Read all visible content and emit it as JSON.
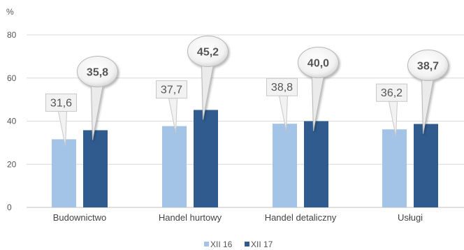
{
  "chart_data": {
    "type": "bar",
    "ylabel": "%",
    "ylim": [
      0,
      80
    ],
    "yticks": [
      0,
      20,
      40,
      60,
      80
    ],
    "yticks_labels": [
      "0",
      "20",
      "40",
      "60",
      "80"
    ],
    "grid": true,
    "legend_position": "bottom",
    "categories": [
      "Budownictwo",
      "Handel hurtowy",
      "Handel detaliczny",
      "Usługi"
    ],
    "series": [
      {
        "name": "XII 16",
        "color": "#a3c4e6",
        "values": [
          31.6,
          37.7,
          38.8,
          36.2
        ],
        "labels": [
          "31,6",
          "37,7",
          "38,8",
          "36,2"
        ]
      },
      {
        "name": "XII 17",
        "color": "#2f5b8f",
        "values": [
          35.8,
          45.2,
          40.0,
          38.7
        ],
        "labels": [
          "35,8",
          "45,2",
          "40,0",
          "38,7"
        ]
      }
    ]
  }
}
